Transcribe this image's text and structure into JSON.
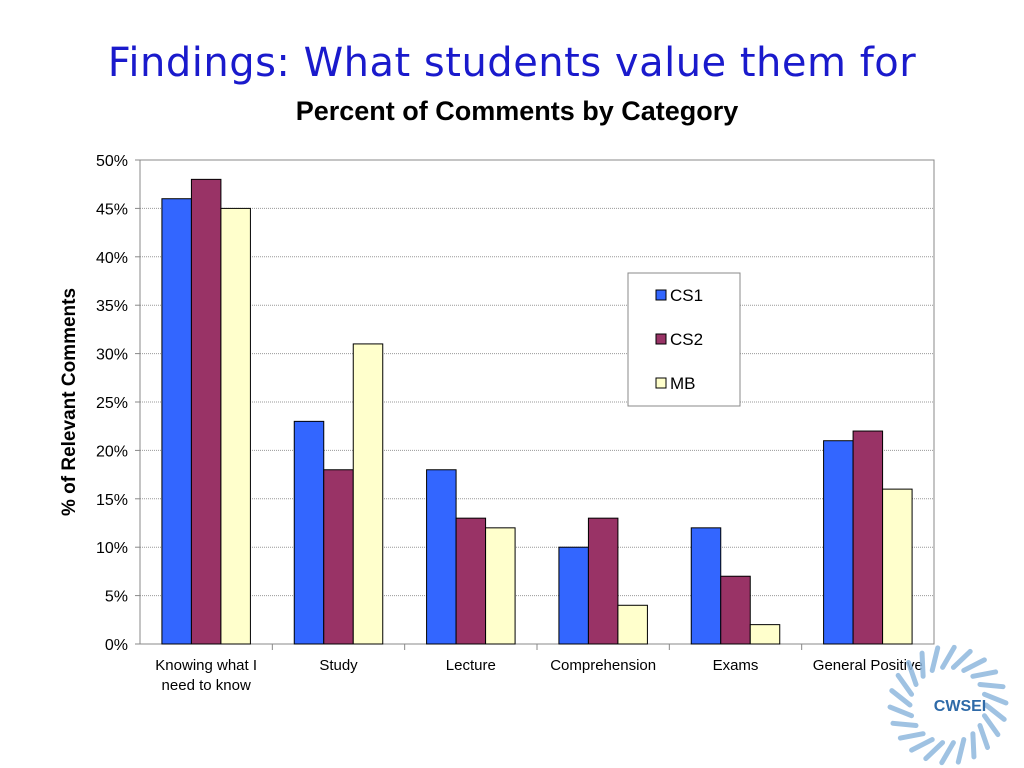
{
  "slide": {
    "title": "Findings: What students value them for"
  },
  "logo": {
    "text": "CWSEI"
  },
  "chart_data": {
    "type": "bar",
    "title": "Percent of Comments by Category",
    "xlabel": "",
    "ylabel": "% of Relevant Comments",
    "ylim": [
      0,
      50
    ],
    "ytick_step": 5,
    "ytick_suffix": "%",
    "grid": true,
    "legend_position": "upper-right",
    "categories": [
      [
        "Knowing what I",
        "need to know"
      ],
      [
        "Study"
      ],
      [
        "Lecture"
      ],
      [
        "Comprehension"
      ],
      [
        "Exams"
      ],
      [
        "General Positive"
      ]
    ],
    "series": [
      {
        "name": "CS1",
        "color": "#3366ff",
        "values": [
          46,
          23,
          18,
          10,
          12,
          21
        ]
      },
      {
        "name": "CS2",
        "color": "#993366",
        "values": [
          48,
          18,
          13,
          13,
          7,
          22
        ]
      },
      {
        "name": "MB",
        "color": "#ffffcc",
        "values": [
          45,
          31,
          12,
          4,
          2,
          16
        ]
      }
    ]
  }
}
